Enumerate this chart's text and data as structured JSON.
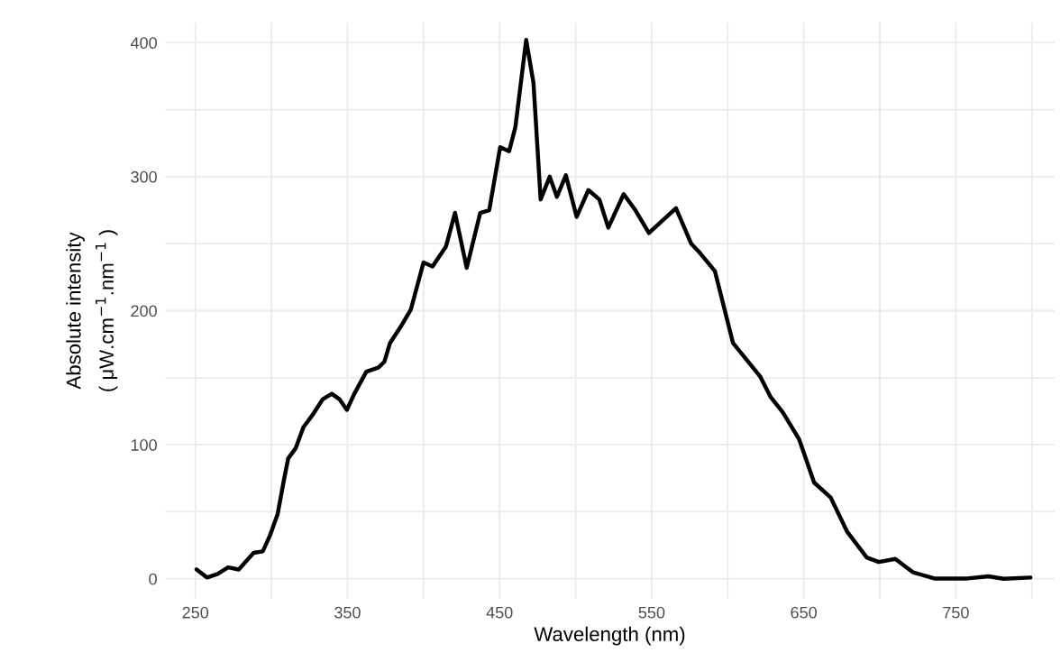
{
  "chart_data": {
    "type": "line",
    "xlabel": "Wavelength (nm)",
    "ylabel": "Absolute intensity\n( μW.cm$^{−1}$.nm$^{−1}$ )",
    "x": [
      250.8,
      257.7,
      264.6,
      271.5,
      278.5,
      288.3,
      294.3,
      299.2,
      304.1,
      308.1,
      311,
      316,
      321,
      326.9,
      333.8,
      339.7,
      344.7,
      349.6,
      354.5,
      362.4,
      370.3,
      374.3,
      378,
      385,
      391.7,
      400,
      405.9,
      414.8,
      420.7,
      428.4,
      437.3,
      443.2,
      450.4,
      456.3,
      460.4,
      467.5,
      472.3,
      477,
      483,
      487.7,
      493.6,
      500.7,
      508.4,
      515.6,
      521.5,
      531.6,
      539.3,
      548.2,
      566,
      576,
      581.8,
      591.6,
      603.5,
      613.4,
      621.3,
      628.2,
      636.1,
      647,
      656.8,
      667.7,
      678.6,
      691.4,
      699.3,
      710.2,
      722,
      735.9,
      757.6,
      771.5,
      781.3,
      799.1
    ],
    "series": [
      {
        "color": "#000000",
        "values": [
          6.9,
          0.9,
          3.6,
          8.5,
          6.9,
          19.3,
          20.4,
          32.7,
          48.3,
          73,
          89.7,
          97.5,
          113,
          122,
          134,
          138,
          134,
          126,
          138,
          154.5,
          157.5,
          162,
          176,
          188,
          201,
          236,
          233,
          248,
          273,
          232,
          273,
          275,
          322,
          319,
          337,
          402,
          370,
          283,
          300,
          285,
          301,
          270,
          290,
          283,
          262,
          287,
          275,
          258,
          276.5,
          250,
          243,
          229.5,
          175.8,
          162,
          151,
          135.6,
          124.4,
          104,
          71.8,
          60.6,
          35,
          15.9,
          12.5,
          14.8,
          4.7,
          0.2,
          0.2,
          1.8,
          0,
          0.9
        ]
      }
    ],
    "xlim": [
      230,
      815
    ],
    "ylim": [
      -15,
      415
    ],
    "xticks": [
      250,
      {
        "value": 300,
        "label": null
      },
      350,
      {
        "value": 400,
        "label": null
      },
      450,
      {
        "value": 500,
        "label": null
      },
      550,
      {
        "value": 600,
        "label": null
      },
      650,
      {
        "value": 700,
        "label": null
      },
      750,
      {
        "value": 800,
        "label": null
      }
    ],
    "yticks": [
      0,
      {
        "value": 50,
        "label": null
      },
      100,
      {
        "value": 150,
        "label": null
      },
      200,
      {
        "value": 250,
        "label": null
      },
      300,
      {
        "value": 350,
        "label": null
      },
      400
    ],
    "grid": true,
    "marker": "none",
    "line_style": "solid",
    "legend": false
  }
}
